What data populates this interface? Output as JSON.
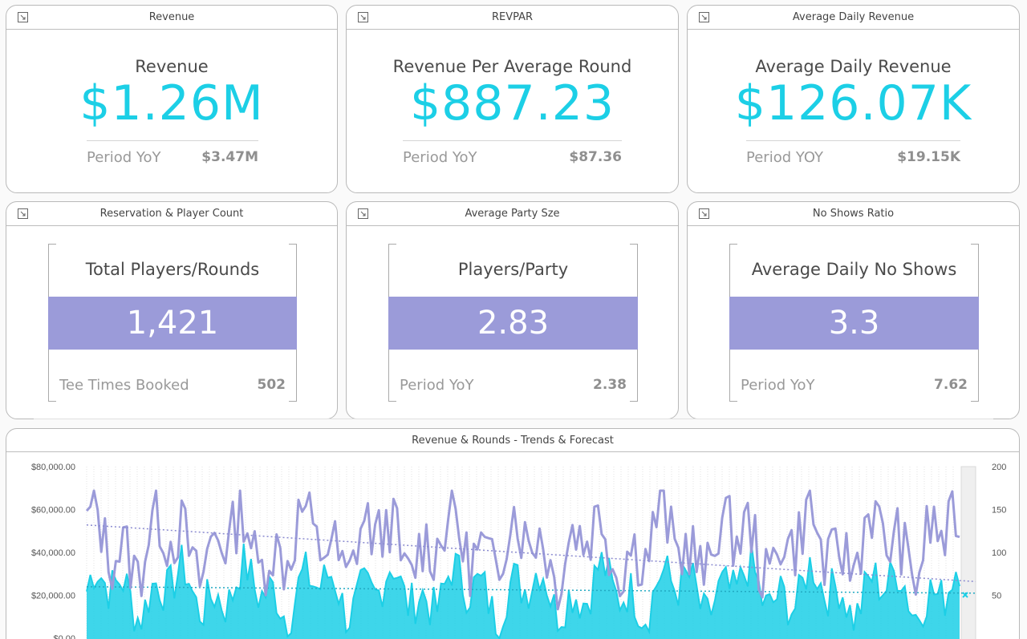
{
  "cards": {
    "revenue": {
      "header": "Revenue",
      "subtitle": "Revenue",
      "value": "$1.26M",
      "foot_label": "Period YoY",
      "foot_value": "$3.47M"
    },
    "revpar": {
      "header": "REVPAR",
      "subtitle": "Revenue Per Average Round",
      "value": "$887.23",
      "foot_label": "Period YoY",
      "foot_value": "$87.36"
    },
    "adr": {
      "header": "Average Daily Revenue",
      "subtitle": "Average Daily Revenue",
      "value": "$126.07K",
      "foot_label": "Period YOY",
      "foot_value": "$19.15K"
    },
    "players": {
      "header": "Reservation & Player Count",
      "subtitle": "Total Players/Rounds",
      "value": "1,421",
      "foot_label": "Tee Times Booked",
      "foot_value": "502"
    },
    "party": {
      "header": "Average Party Sze",
      "subtitle": "Players/Party",
      "value": "2.83",
      "foot_label": "Period YoY",
      "foot_value": "2.38"
    },
    "noshows": {
      "header": "No Shows Ratio",
      "subtitle": "Average Daily No Shows",
      "value": "3.3",
      "foot_label": "Period YoY",
      "foot_value": "7.62"
    }
  },
  "chart_card": {
    "header": "Revenue & Rounds - Trends & Forecast"
  },
  "chart_data": {
    "type": "area",
    "left_axis": {
      "ticks": [
        "$80,000.00",
        "$60,000.00",
        "$40,000.00",
        "$20,000.00",
        "$0.00"
      ],
      "ylim": [
        0,
        80000
      ]
    },
    "right_axis": {
      "ticks": [
        "200",
        "150",
        "100",
        "50"
      ],
      "ylim": [
        0,
        200
      ]
    },
    "series": [
      {
        "color": "#1ccfe6",
        "axis": "left",
        "trend": [
          24000,
          21000
        ],
        "seed": 7,
        "baseline": 22000,
        "amplitude": 16000
      },
      {
        "color": "#9b9bd9",
        "axis": "right",
        "trend": [
          132,
          66
        ],
        "seed": 13,
        "baseline": 110,
        "amplitude": 55
      }
    ],
    "grid": true,
    "forecast_shaded": true
  },
  "colors": {
    "accent": "#1ccfe6",
    "purple": "#9b9bd9"
  }
}
